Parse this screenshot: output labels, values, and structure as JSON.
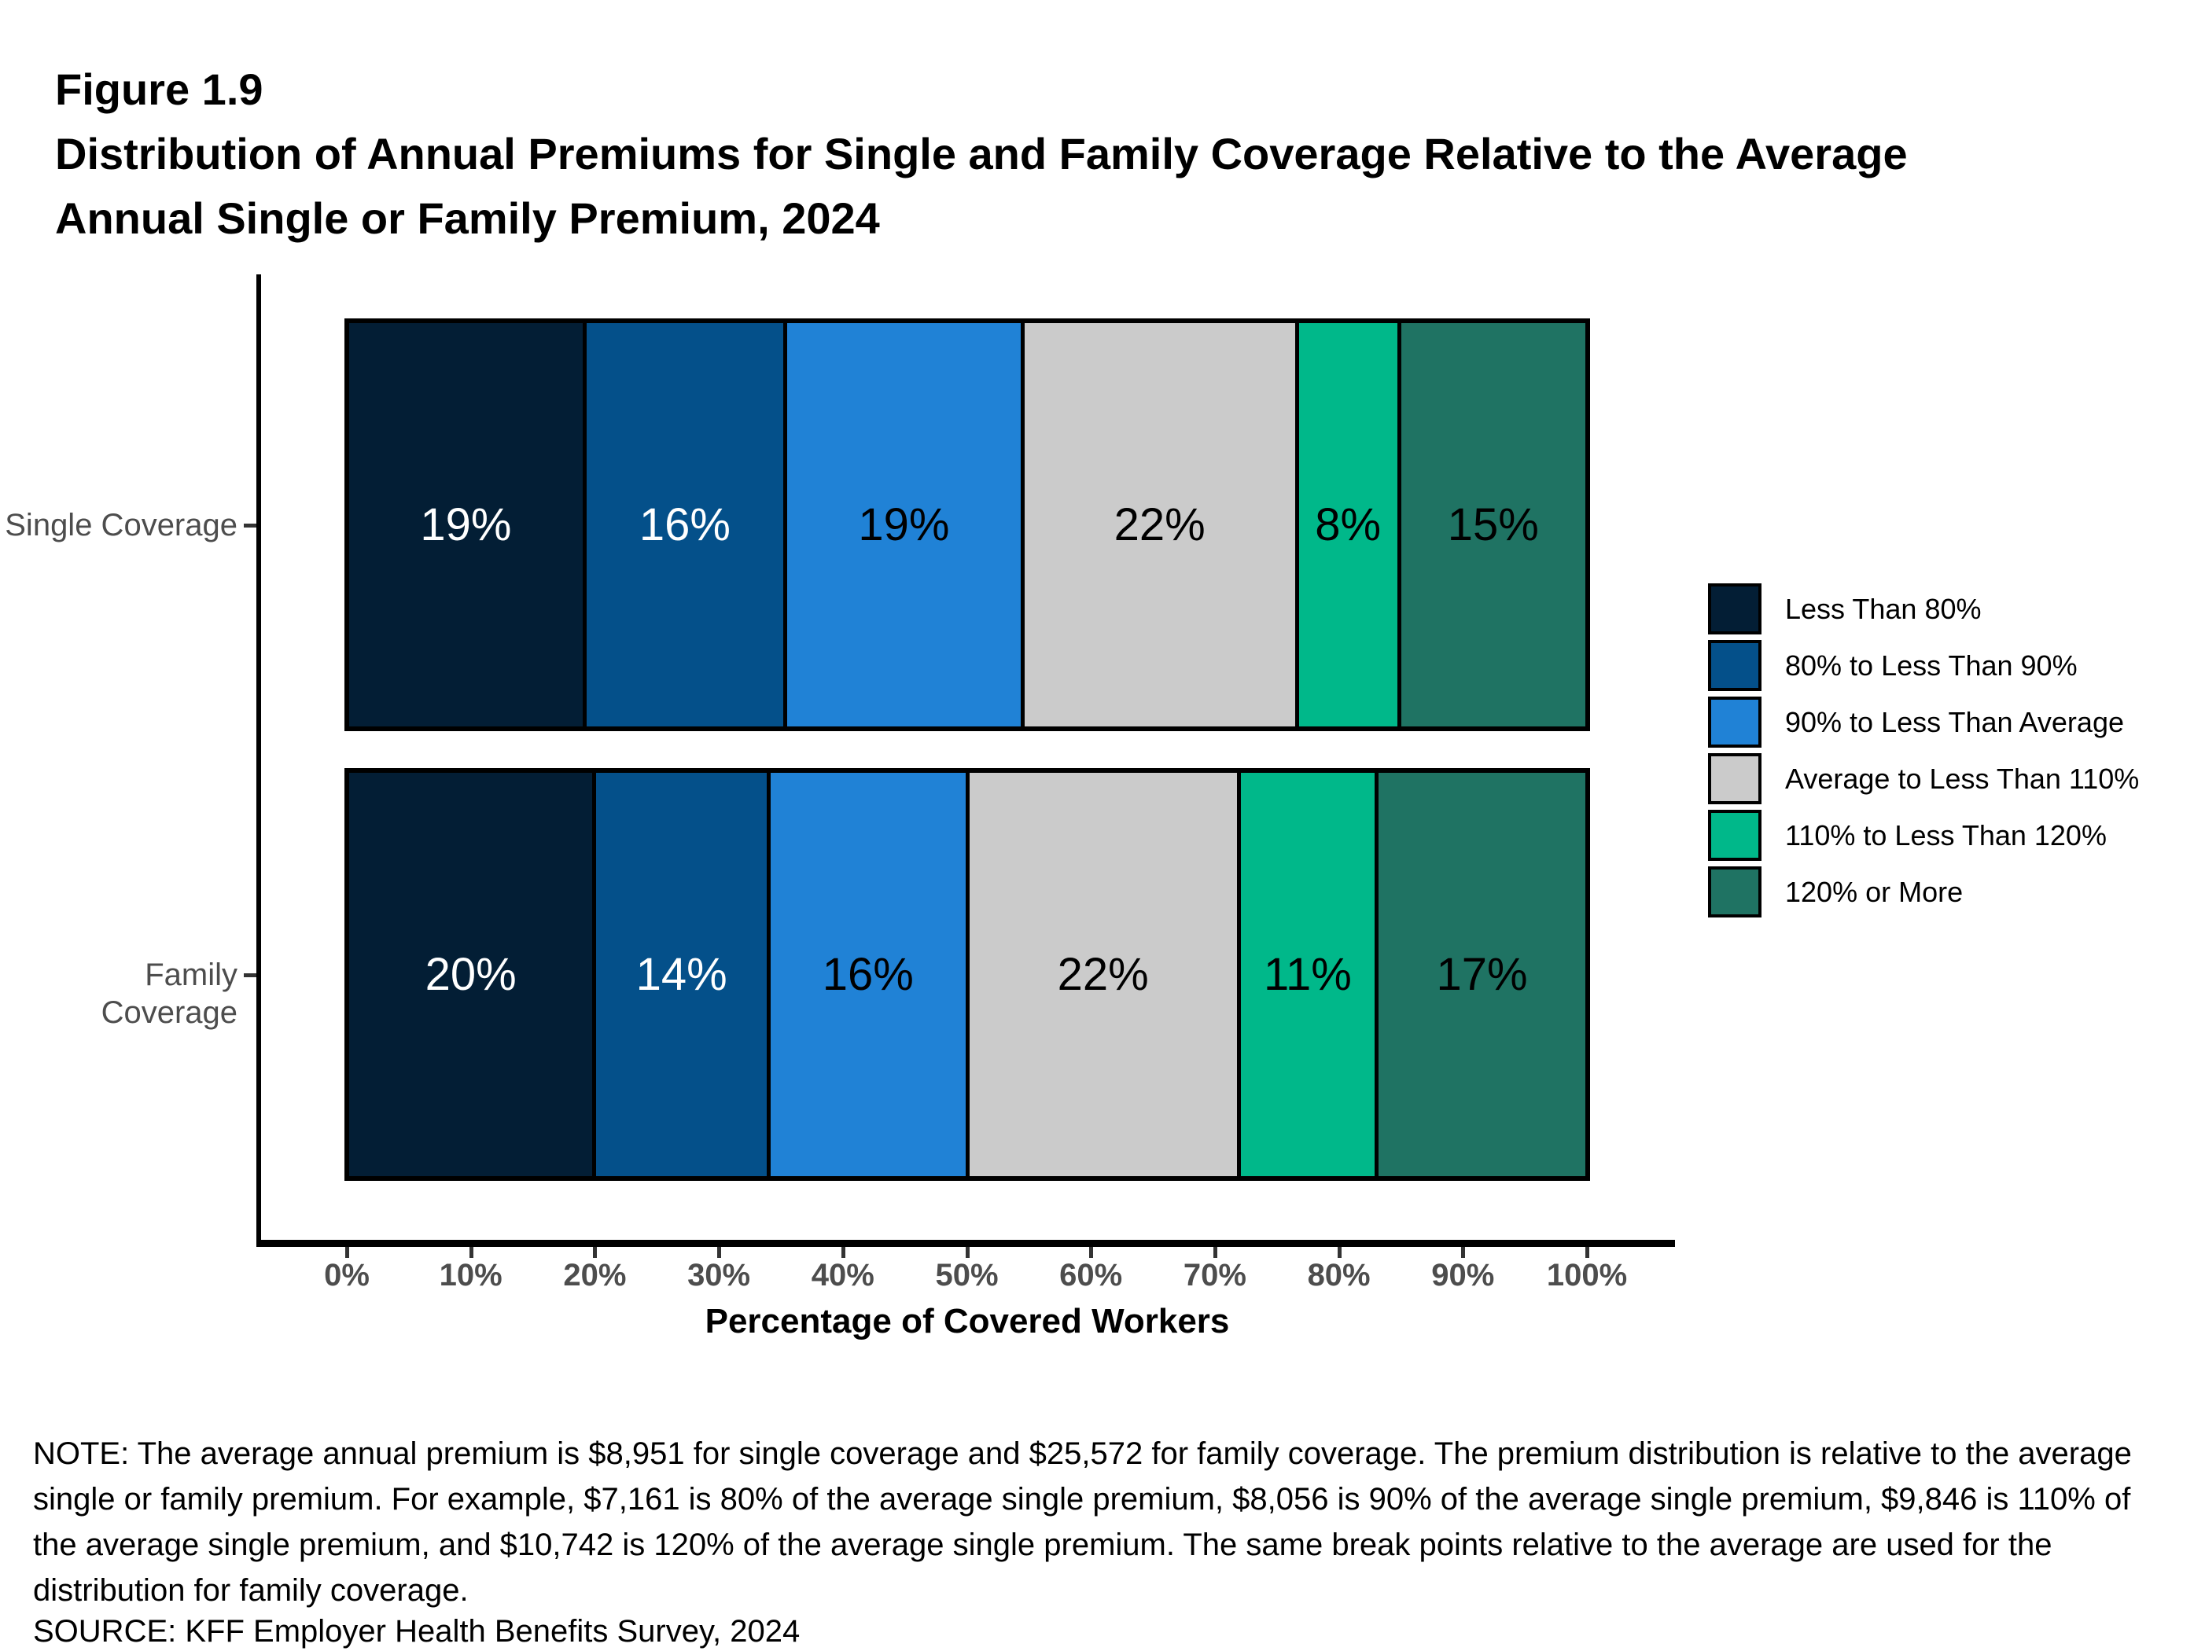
{
  "figure": {
    "label": "Figure 1.9",
    "title_line1": "Distribution of Annual Premiums for Single and Family Coverage Relative to the Average",
    "title_line2": "Annual Single or Family Premium, 2024"
  },
  "chart_data": {
    "type": "bar",
    "orientation": "horizontal",
    "stacked": true,
    "categories": [
      "Single Coverage",
      "Family Coverage"
    ],
    "series": [
      {
        "name": "Less Than 80%",
        "color": "#031e35",
        "values": [
          19,
          20
        ],
        "labels": [
          "19%",
          "20%"
        ]
      },
      {
        "name": "80% to Less Than 90%",
        "color": "#04508a",
        "values": [
          16,
          14
        ],
        "labels": [
          "16%",
          "14%"
        ]
      },
      {
        "name": "90% to Less Than Average",
        "color": "#2082d6",
        "values": [
          19,
          16
        ],
        "labels": [
          "19%",
          "16%"
        ]
      },
      {
        "name": "Average to Less Than 110%",
        "color": "#cbcbcb",
        "values": [
          22,
          22
        ],
        "labels": [
          "22%",
          "22%"
        ]
      },
      {
        "name": "110% to Less Than 120%",
        "color": "#00b88a",
        "values": [
          8,
          11
        ],
        "labels": [
          "8%",
          "11%"
        ]
      },
      {
        "name": "120% or More",
        "color": "#1f7363",
        "values": [
          15,
          17
        ],
        "labels": [
          "15%",
          "17%"
        ]
      }
    ],
    "xlabel": "Percentage of Covered Workers",
    "x_ticks": [
      "0%",
      "10%",
      "20%",
      "30%",
      "40%",
      "50%",
      "60%",
      "70%",
      "80%",
      "90%",
      "100%"
    ],
    "xlim": [
      0,
      100
    ],
    "grid": false,
    "legend_position": "right",
    "value_labels_shown": true
  },
  "note": "NOTE: The average annual premium is $8,951 for single coverage and $25,572 for family coverage. The premium distribution is relative to the average single or family premium. For example, $7,161 is 80% of the average single premium, $8,056 is 90% of the average single premium, $9,846 is 110% of the average single premium, and $10,742 is 120% of the average single premium. The same break points relative to the average are used for the distribution for family coverage.",
  "source": "SOURCE: KFF Employer Health Benefits Survey, 2024"
}
